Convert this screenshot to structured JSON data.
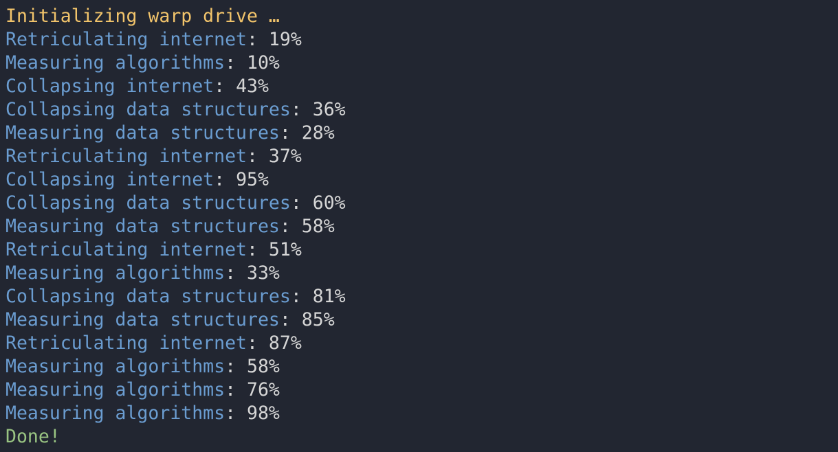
{
  "terminal": {
    "header": "Initializing warp drive",
    "header_suffix": "…",
    "lines": [
      {
        "label": "Retriculating internet",
        "value": "19%"
      },
      {
        "label": "Measuring algorithms",
        "value": "10%"
      },
      {
        "label": "Collapsing internet",
        "value": "43%"
      },
      {
        "label": "Collapsing data structures",
        "value": "36%"
      },
      {
        "label": "Measuring data structures",
        "value": "28%"
      },
      {
        "label": "Retriculating internet",
        "value": "37%"
      },
      {
        "label": "Collapsing internet",
        "value": "95%"
      },
      {
        "label": "Collapsing data structures",
        "value": "60%"
      },
      {
        "label": "Measuring data structures",
        "value": "58%"
      },
      {
        "label": "Retriculating internet",
        "value": "51%"
      },
      {
        "label": "Measuring algorithms",
        "value": "33%"
      },
      {
        "label": "Collapsing data structures",
        "value": "81%"
      },
      {
        "label": "Measuring data structures",
        "value": "85%"
      },
      {
        "label": "Retriculating internet",
        "value": "87%"
      },
      {
        "label": "Measuring algorithms",
        "value": "58%"
      },
      {
        "label": "Measuring algorithms",
        "value": "76%"
      },
      {
        "label": "Measuring algorithms",
        "value": "98%"
      }
    ],
    "separator": ": ",
    "footer": "Done!"
  },
  "colors": {
    "background": "#222631",
    "header": "#f2c46b",
    "label": "#6b9dd1",
    "value": "#d6d6d6",
    "done": "#99c482"
  }
}
